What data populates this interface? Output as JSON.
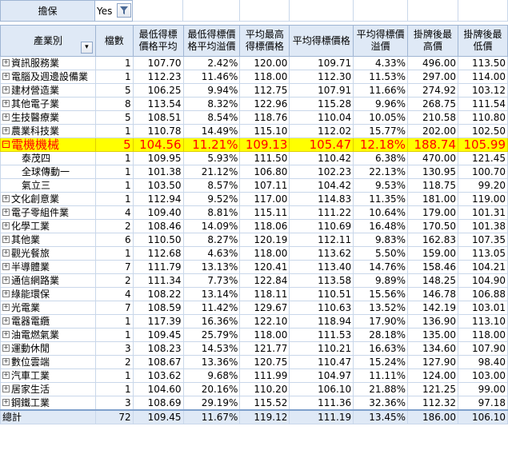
{
  "filter": {
    "label": "擔保",
    "value": "Yes",
    "button_icon": "filter-icon"
  },
  "table": {
    "headers": [
      "產業別",
      "檔數",
      "最低得標價格平均",
      "最低得標價格平均溢價",
      "平均最高得標價格",
      "平均得標價格",
      "平均得標價溢價",
      "掛牌後最高價",
      "掛牌後最低價"
    ],
    "sort_icon": "sort-dropdown-icon",
    "rows": [
      {
        "name": "資訊服務業",
        "count": "1",
        "v": [
          "107.70",
          "2.42%",
          "120.00",
          "109.71",
          "4.33%",
          "496.00",
          "113.50"
        ]
      },
      {
        "name": "電腦及週邊設備業",
        "count": "1",
        "v": [
          "112.23",
          "11.46%",
          "118.00",
          "112.30",
          "11.53%",
          "297.00",
          "114.00"
        ]
      },
      {
        "name": "建材營造業",
        "count": "5",
        "v": [
          "106.25",
          "9.94%",
          "112.75",
          "107.91",
          "11.66%",
          "274.92",
          "103.12"
        ]
      },
      {
        "name": "其他電子業",
        "count": "8",
        "v": [
          "113.54",
          "8.32%",
          "122.96",
          "115.28",
          "9.96%",
          "268.75",
          "111.54"
        ]
      },
      {
        "name": "生技醫療業",
        "count": "5",
        "v": [
          "108.51",
          "8.54%",
          "118.76",
          "110.04",
          "10.05%",
          "210.58",
          "110.80"
        ]
      },
      {
        "name": "農業科技業",
        "count": "1",
        "v": [
          "110.78",
          "14.49%",
          "115.10",
          "112.02",
          "15.77%",
          "202.00",
          "102.50"
        ]
      },
      {
        "name": "電機機械",
        "count": "5",
        "v": [
          "104.56",
          "11.21%",
          "109.13",
          "105.47",
          "12.18%",
          "188.74",
          "105.99"
        ],
        "highlight": true,
        "expanded": true
      },
      {
        "name": "泰茂四",
        "count": "1",
        "v": [
          "109.95",
          "5.93%",
          "111.50",
          "110.42",
          "6.38%",
          "470.00",
          "121.45"
        ],
        "sub": true
      },
      {
        "name": "全球傳動一",
        "count": "1",
        "v": [
          "101.38",
          "21.12%",
          "106.80",
          "102.23",
          "22.13%",
          "130.95",
          "100.70"
        ],
        "sub": true
      },
      {
        "name": "氣立三",
        "count": "1",
        "v": [
          "103.50",
          "8.57%",
          "107.11",
          "104.42",
          "9.53%",
          "118.75",
          "99.20"
        ],
        "sub": true
      },
      {
        "name": "文化創意業",
        "count": "1",
        "v": [
          "112.94",
          "9.52%",
          "117.00",
          "114.83",
          "11.35%",
          "181.00",
          "119.00"
        ]
      },
      {
        "name": "電子零組件業",
        "count": "4",
        "v": [
          "109.40",
          "8.81%",
          "115.11",
          "111.22",
          "10.64%",
          "179.00",
          "101.31"
        ]
      },
      {
        "name": "化學工業",
        "count": "2",
        "v": [
          "108.46",
          "14.09%",
          "118.06",
          "110.69",
          "16.48%",
          "170.50",
          "101.38"
        ]
      },
      {
        "name": "其他業",
        "count": "6",
        "v": [
          "110.50",
          "8.27%",
          "120.19",
          "112.11",
          "9.83%",
          "162.83",
          "107.35"
        ]
      },
      {
        "name": "觀光餐旅",
        "count": "1",
        "v": [
          "112.68",
          "4.63%",
          "118.00",
          "113.62",
          "5.50%",
          "159.00",
          "113.05"
        ]
      },
      {
        "name": "半導體業",
        "count": "7",
        "v": [
          "111.79",
          "13.13%",
          "120.41",
          "113.40",
          "14.76%",
          "158.46",
          "104.21"
        ]
      },
      {
        "name": "通信網路業",
        "count": "2",
        "v": [
          "111.34",
          "7.73%",
          "122.84",
          "113.58",
          "9.89%",
          "148.25",
          "104.90"
        ]
      },
      {
        "name": "綠能環保",
        "count": "4",
        "v": [
          "108.22",
          "13.14%",
          "118.11",
          "110.51",
          "15.56%",
          "146.78",
          "106.88"
        ]
      },
      {
        "name": "光電業",
        "count": "7",
        "v": [
          "108.59",
          "11.42%",
          "129.67",
          "110.63",
          "13.52%",
          "142.19",
          "103.01"
        ]
      },
      {
        "name": "電器電纜",
        "count": "1",
        "v": [
          "117.39",
          "16.36%",
          "122.10",
          "118.94",
          "17.90%",
          "136.90",
          "113.10"
        ]
      },
      {
        "name": "油電燃氣業",
        "count": "1",
        "v": [
          "109.45",
          "25.79%",
          "118.00",
          "111.53",
          "28.18%",
          "135.00",
          "118.00"
        ]
      },
      {
        "name": "運動休閒",
        "count": "3",
        "v": [
          "108.23",
          "14.53%",
          "121.77",
          "110.21",
          "16.63%",
          "134.60",
          "107.90"
        ]
      },
      {
        "name": "數位雲端",
        "count": "2",
        "v": [
          "108.67",
          "13.36%",
          "120.75",
          "110.47",
          "15.24%",
          "127.90",
          "98.40"
        ]
      },
      {
        "name": "汽車工業",
        "count": "1",
        "v": [
          "103.62",
          "9.68%",
          "111.99",
          "104.97",
          "11.11%",
          "124.00",
          "103.00"
        ]
      },
      {
        "name": "居家生活",
        "count": "1",
        "v": [
          "104.60",
          "20.16%",
          "110.20",
          "106.10",
          "21.88%",
          "121.25",
          "99.00"
        ]
      },
      {
        "name": "鋼鐵工業",
        "count": "3",
        "v": [
          "108.69",
          "29.19%",
          "115.52",
          "111.36",
          "32.36%",
          "112.32",
          "97.18"
        ]
      }
    ],
    "total": {
      "name": "總計",
      "count": "72",
      "v": [
        "109.45",
        "11.67%",
        "119.12",
        "111.19",
        "13.45%",
        "186.00",
        "106.10"
      ]
    }
  }
}
